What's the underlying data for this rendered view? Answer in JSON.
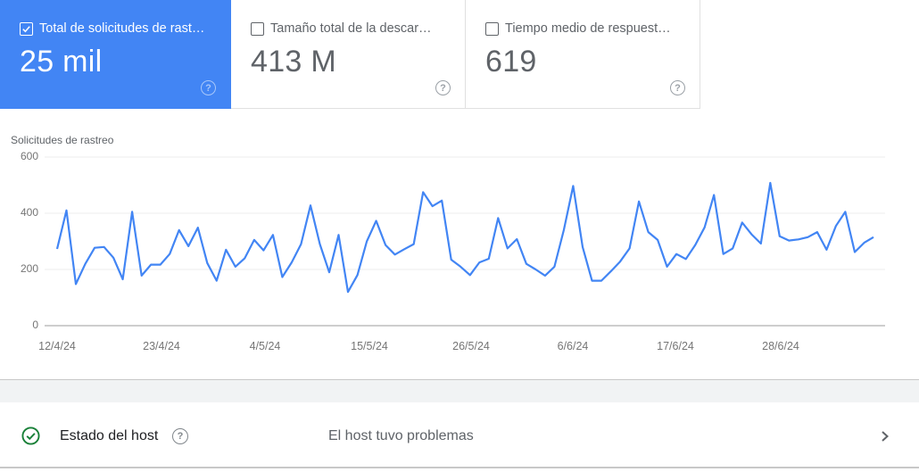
{
  "metrics": [
    {
      "label": "Total de solicitudes de rast…",
      "value": "25 mil",
      "checked": true
    },
    {
      "label": "Tamaño total de la descar…",
      "value": "413 M",
      "checked": false
    },
    {
      "label": "Tiempo medio de respuest…",
      "value": "619",
      "checked": false
    }
  ],
  "help_glyph": "?",
  "chart": {
    "title": "Solicitudes de rastreo",
    "y_ticks": [
      "600",
      "400",
      "200",
      "0"
    ],
    "x_ticks": [
      "12/4/24",
      "23/4/24",
      "4/5/24",
      "15/5/24",
      "26/5/24",
      "6/6/24",
      "17/6/24",
      "28/6/24"
    ]
  },
  "host": {
    "label": "Estado del host",
    "status": "El host tuvo problemas"
  },
  "colors": {
    "accent": "#4285f4",
    "line": "#4285f4",
    "ok_green": "#188038"
  },
  "chart_data": {
    "type": "line",
    "title": "Solicitudes de rastreo",
    "xlabel": "",
    "ylabel": "Solicitudes de rastreo",
    "ylim": [
      0,
      600
    ],
    "y_ticks": [
      0,
      200,
      400,
      600
    ],
    "grid": true,
    "legend": "none",
    "x_tick_labels": [
      "12/4/24",
      "23/4/24",
      "4/5/24",
      "15/5/24",
      "26/5/24",
      "6/6/24",
      "17/6/24",
      "28/6/24"
    ],
    "x_start": "12/4/24",
    "x_step_days": 1,
    "series": [
      {
        "name": "Total de solicitudes de rastreo",
        "color": "#4285f4",
        "values": [
          273,
          410,
          148,
          220,
          277,
          280,
          242,
          165,
          405,
          178,
          217,
          217,
          255,
          340,
          283,
          349,
          223,
          160,
          270,
          210,
          240,
          305,
          268,
          323,
          173,
          225,
          290,
          428,
          290,
          190,
          323,
          120,
          180,
          300,
          373,
          287,
          253,
          272,
          290,
          475,
          425,
          445,
          235,
          210,
          180,
          225,
          238,
          383,
          275,
          308,
          220,
          200,
          178,
          210,
          340,
          497,
          280,
          160,
          160,
          193,
          228,
          275,
          442,
          333,
          305,
          210,
          255,
          237,
          287,
          350,
          465,
          255,
          275,
          367,
          325,
          292,
          508,
          318,
          303,
          307,
          315,
          333,
          270,
          355,
          405,
          262,
          295,
          315
        ]
      }
    ]
  }
}
